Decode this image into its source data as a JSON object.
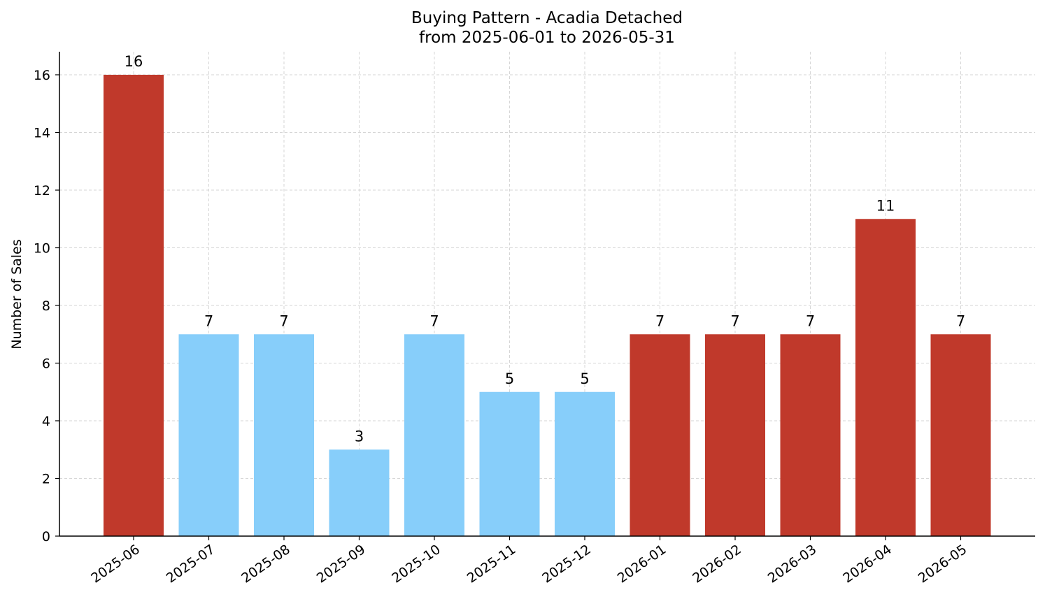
{
  "chart_data": {
    "type": "bar",
    "title": "Buying Pattern - Acadia Detached",
    "subtitle": "from 2025-06-01 to 2026-05-31",
    "xlabel": "",
    "ylabel": "Number of Sales",
    "categories": [
      "2025-06",
      "2025-07",
      "2025-08",
      "2025-09",
      "2025-10",
      "2025-11",
      "2025-12",
      "2026-01",
      "2026-02",
      "2026-03",
      "2026-04",
      "2026-05"
    ],
    "values": [
      16,
      7,
      7,
      3,
      7,
      5,
      5,
      7,
      7,
      7,
      11,
      7
    ],
    "bar_colors": [
      "#c0392b",
      "#87cefa",
      "#87cefa",
      "#87cefa",
      "#87cefa",
      "#87cefa",
      "#87cefa",
      "#c0392b",
      "#c0392b",
      "#c0392b",
      "#c0392b",
      "#c0392b"
    ],
    "yticks": [
      0,
      2,
      4,
      6,
      8,
      10,
      12,
      14,
      16
    ],
    "ylim": [
      0,
      16.8
    ],
    "grid": true,
    "data_labels": true
  }
}
